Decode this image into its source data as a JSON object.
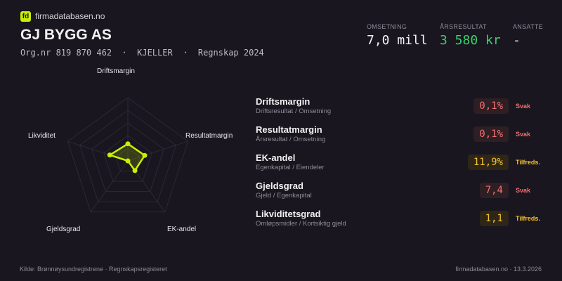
{
  "header": {
    "logo_text": "fd",
    "brand": "firmadatabasen.no",
    "company": "GJ BYGG AS",
    "meta": "Org.nr 819 870 462  ·  KJELLER  ·  Regnskap 2024"
  },
  "kpis": [
    {
      "label": "OMSETNING",
      "value": "7,0 mill",
      "color": "#f2f2f2"
    },
    {
      "label": "ÅRSRESULTAT",
      "value": "3 580 kr",
      "color": "#3ecf6e"
    },
    {
      "label": "ANSATTE",
      "value": "-",
      "color": "#f2f2f2"
    }
  ],
  "chart_data": {
    "type": "radar",
    "axes": [
      "Driftsmargin",
      "Resultatmargin",
      "EK-andel",
      "Gjeldsgrad",
      "Likviditet"
    ],
    "values": [
      0.27,
      0.28,
      0.19,
      0.0,
      0.3
    ],
    "range": [
      0,
      1
    ],
    "rings": 5,
    "color": "#c8f000"
  },
  "ratios": [
    {
      "name": "Driftsmargin",
      "formula": "Driftsresultat / Omsetning",
      "value": "0,1%",
      "status": "Svak",
      "level": "svak"
    },
    {
      "name": "Resultatmargin",
      "formula": "Årsresultat / Omsetning",
      "value": "0,1%",
      "status": "Svak",
      "level": "svak"
    },
    {
      "name": "EK-andel",
      "formula": "Egenkapital / Eiendeler",
      "value": "11,9%",
      "status": "Tilfreds.",
      "level": "ok"
    },
    {
      "name": "Gjeldsgrad",
      "formula": "Gjeld / Egenkapital",
      "value": "7,4",
      "status": "Svak",
      "level": "svak"
    },
    {
      "name": "Likviditetsgrad",
      "formula": "Omløpsmidler / Kortsiktig gjeld",
      "value": "1,1",
      "status": "Tilfreds.",
      "level": "ok"
    }
  ],
  "footer": {
    "source": "Kilde: Brønnøysundregistrene · Regnskapsregisteret",
    "site_date": "firmadatabasen.no · 13.3.2026"
  }
}
